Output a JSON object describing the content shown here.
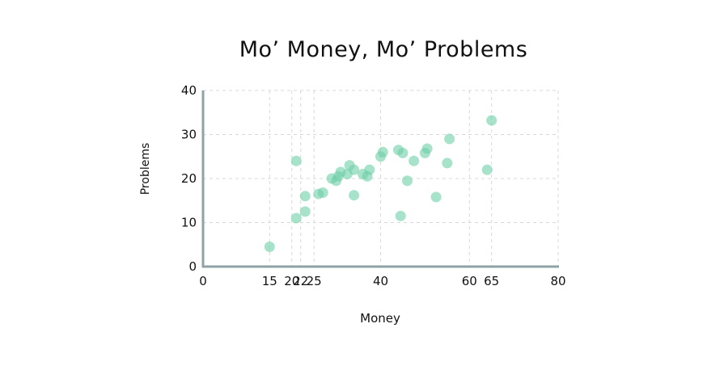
{
  "chart_data": {
    "type": "scatter",
    "title": "Mo’ Money, Mo’ Problems",
    "xlabel": "Money",
    "ylabel": "Problems",
    "x_ticks": [
      0,
      15,
      20,
      22,
      25,
      40,
      60,
      65,
      80
    ],
    "y_ticks": [
      0,
      10,
      20,
      30,
      40
    ],
    "xlim": [
      0,
      80
    ],
    "ylim": [
      0,
      40
    ],
    "grid": true,
    "point_color": "#6ccfa8",
    "axis_color": "#8fa3a6",
    "points": [
      {
        "x": 15,
        "y": 4.5
      },
      {
        "x": 21,
        "y": 11
      },
      {
        "x": 21,
        "y": 24
      },
      {
        "x": 23,
        "y": 16
      },
      {
        "x": 23,
        "y": 12.5
      },
      {
        "x": 26,
        "y": 16.5
      },
      {
        "x": 27,
        "y": 16.8
      },
      {
        "x": 29,
        "y": 20
      },
      {
        "x": 30,
        "y": 19.5
      },
      {
        "x": 30.5,
        "y": 20.5
      },
      {
        "x": 31,
        "y": 21.5
      },
      {
        "x": 32.5,
        "y": 21
      },
      {
        "x": 33,
        "y": 23
      },
      {
        "x": 34,
        "y": 22
      },
      {
        "x": 34,
        "y": 16.2
      },
      {
        "x": 36,
        "y": 21
      },
      {
        "x": 37,
        "y": 20.5
      },
      {
        "x": 37.5,
        "y": 22
      },
      {
        "x": 40,
        "y": 25
      },
      {
        "x": 40.5,
        "y": 26
      },
      {
        "x": 44,
        "y": 26.5
      },
      {
        "x": 44.5,
        "y": 11.5
      },
      {
        "x": 45,
        "y": 25.8
      },
      {
        "x": 46,
        "y": 19.5
      },
      {
        "x": 47.5,
        "y": 24
      },
      {
        "x": 50,
        "y": 25.8
      },
      {
        "x": 50.5,
        "y": 26.8
      },
      {
        "x": 52.5,
        "y": 15.8
      },
      {
        "x": 55,
        "y": 23.5
      },
      {
        "x": 55.5,
        "y": 29
      },
      {
        "x": 64,
        "y": 22
      },
      {
        "x": 65,
        "y": 33.2
      }
    ]
  }
}
